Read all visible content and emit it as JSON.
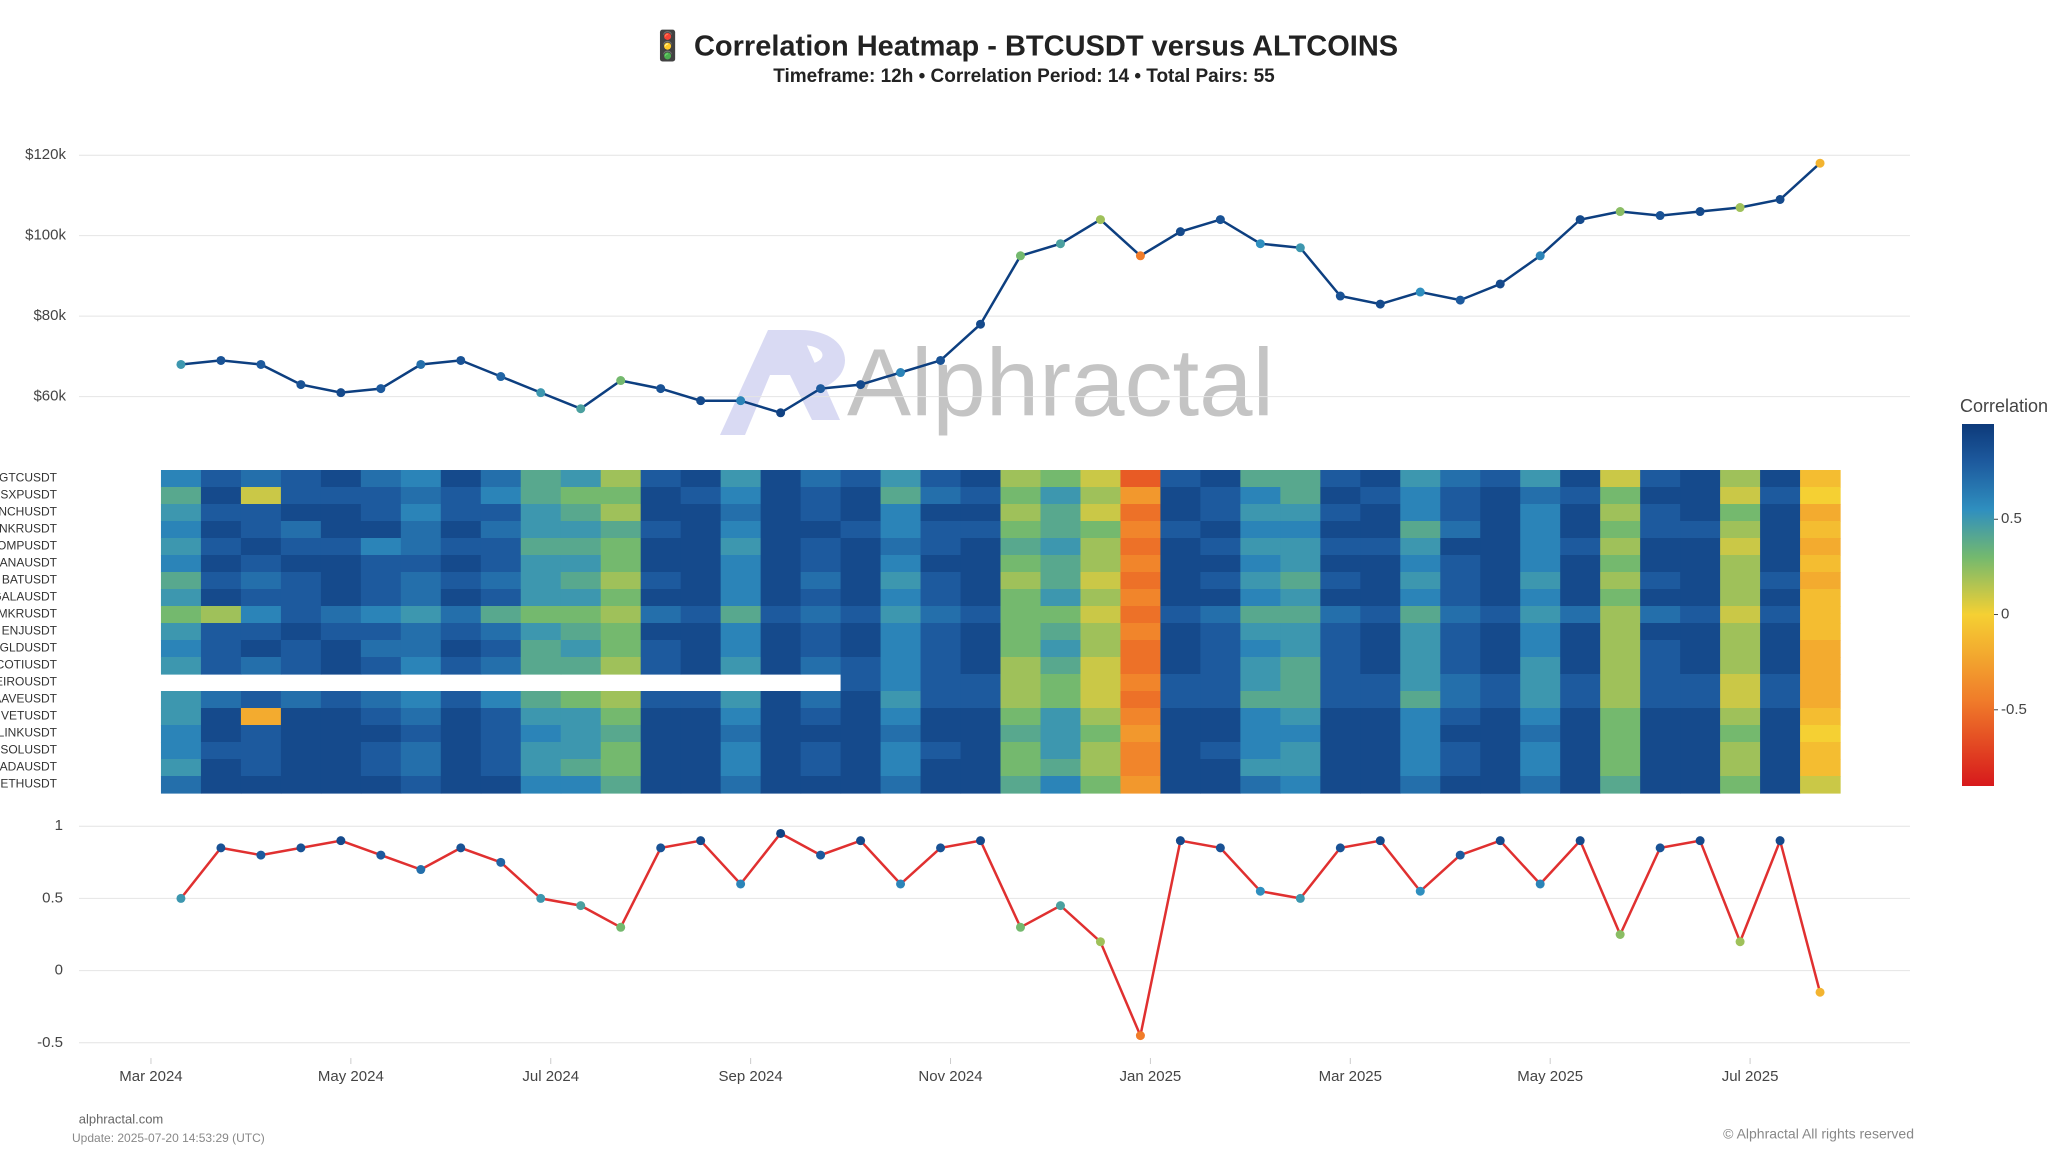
{
  "title": "🚦 Correlation Heatmap - BTCUSDT versus ALTCOINS",
  "subtitle": "Timeframe: 12h • Correlation Period: 14  • Total Pairs: 55",
  "watermark": "Alphractal",
  "footer": {
    "site": "alphractal.com",
    "update": "Update: 2025-07-20 14:53:29 (UTC)",
    "copyright": "© Alphractal All rights reserved"
  },
  "chart_data": [
    {
      "type": "line",
      "color": "#0d3f80",
      "x": [
        3.3,
        3.7,
        4.1,
        4.5,
        4.9,
        5.3,
        5.7,
        6.1,
        6.5,
        6.9,
        7.3,
        7.7,
        8.1,
        8.5,
        8.9,
        9.3,
        9.7,
        10.1,
        10.5,
        10.9,
        11.3,
        11.7,
        12.1,
        12.5,
        12.9,
        13.3,
        13.7,
        14.1,
        14.5,
        14.9,
        15.3,
        15.7,
        16.1,
        16.5,
        16.9,
        17.3,
        17.7,
        18.1,
        18.5,
        18.9,
        19.3,
        19.7
      ],
      "values": [
        68000,
        69000,
        68000,
        63000,
        61000,
        62000,
        68000,
        69000,
        65000,
        61000,
        57000,
        64000,
        62000,
        59000,
        59000,
        56000,
        62000,
        63000,
        66000,
        69000,
        78000,
        95000,
        98000,
        104000,
        95000,
        101000,
        104000,
        98000,
        97000,
        85000,
        83000,
        86000,
        84000,
        88000,
        95000,
        104000,
        106000,
        105000,
        106000,
        107000,
        109000,
        118000
      ],
      "xlim": [
        2.28,
        20.6
      ],
      "ylim": [
        46000,
        128000
      ],
      "yticks": [
        {
          "value": 60000,
          "label": "$60k"
        },
        {
          "value": 80000,
          "label": "$80k"
        },
        {
          "value": 100000,
          "label": "$100k"
        },
        {
          "value": 120000,
          "label": "$120k"
        }
      ],
      "grid": true
    },
    {
      "type": "heatmap",
      "rows": [
        "GTCUSDT",
        "SXPUSDT",
        "INCHUSDT",
        "ANKRUSDT",
        "COMPUSDT",
        "MANAUSDT",
        "BATUSDT",
        "GALAUSDT",
        "MKRUSDT",
        "ENJUSDT",
        "EGLDUSDT",
        "COTIUSDT",
        "NEIROUSDT",
        "AAVEUSDT",
        "VETUSDT",
        "LINKUSDT",
        "SOLUSDT",
        "ADAUSDT",
        "ETHUSDT"
      ],
      "x": [
        3.3,
        3.7,
        4.1,
        4.5,
        4.9,
        5.3,
        5.7,
        6.1,
        6.5,
        6.9,
        7.3,
        7.7,
        8.1,
        8.5,
        8.9,
        9.3,
        9.7,
        10.1,
        10.5,
        10.9,
        11.3,
        11.7,
        12.1,
        12.5,
        12.9,
        13.3,
        13.7,
        14.1,
        14.5,
        14.9,
        15.3,
        15.7,
        16.1,
        16.5,
        16.9,
        17.3,
        17.7,
        18.1,
        18.5,
        18.9,
        19.3,
        19.7
      ],
      "xlim": [
        2.28,
        20.6
      ],
      "z": [
        [
          0.6,
          0.8,
          0.7,
          0.8,
          0.9,
          0.7,
          0.6,
          0.9,
          0.7,
          0.4,
          0.5,
          0.2,
          0.8,
          0.9,
          0.5,
          0.9,
          0.7,
          0.8,
          0.5,
          0.8,
          0.9,
          0.2,
          0.3,
          0.1,
          -0.6,
          0.8,
          0.9,
          0.4,
          0.4,
          0.8,
          0.9,
          0.5,
          0.7,
          0.8,
          0.5,
          0.9,
          0.1,
          0.8,
          0.9,
          0.2,
          0.9,
          -0.1
        ],
        [
          0.4,
          0.9,
          0.1,
          0.8,
          0.8,
          0.8,
          0.7,
          0.8,
          0.6,
          0.4,
          0.3,
          0.3,
          0.9,
          0.8,
          0.6,
          0.9,
          0.8,
          0.9,
          0.4,
          0.7,
          0.8,
          0.3,
          0.5,
          0.2,
          -0.3,
          0.9,
          0.8,
          0.6,
          0.4,
          0.9,
          0.8,
          0.6,
          0.8,
          0.9,
          0.7,
          0.8,
          0.3,
          0.9,
          0.9,
          0.1,
          0.8,
          0.0
        ],
        [
          0.5,
          0.8,
          0.8,
          0.9,
          0.9,
          0.8,
          0.6,
          0.8,
          0.8,
          0.5,
          0.4,
          0.2,
          0.9,
          0.9,
          0.7,
          0.9,
          0.8,
          0.9,
          0.6,
          0.9,
          0.9,
          0.2,
          0.4,
          0.1,
          -0.5,
          0.9,
          0.8,
          0.5,
          0.5,
          0.8,
          0.9,
          0.6,
          0.8,
          0.9,
          0.6,
          0.9,
          0.2,
          0.8,
          0.9,
          0.3,
          0.9,
          -0.2
        ],
        [
          0.6,
          0.9,
          0.8,
          0.7,
          0.9,
          0.9,
          0.7,
          0.9,
          0.7,
          0.5,
          0.5,
          0.4,
          0.8,
          0.9,
          0.6,
          0.9,
          0.9,
          0.8,
          0.6,
          0.8,
          0.8,
          0.3,
          0.4,
          0.3,
          -0.4,
          0.8,
          0.9,
          0.6,
          0.6,
          0.9,
          0.9,
          0.4,
          0.7,
          0.9,
          0.6,
          0.9,
          0.3,
          0.8,
          0.8,
          0.2,
          0.9,
          -0.1
        ],
        [
          0.5,
          0.8,
          0.9,
          0.8,
          0.8,
          0.6,
          0.7,
          0.8,
          0.8,
          0.4,
          0.4,
          0.3,
          0.9,
          0.9,
          0.5,
          0.9,
          0.8,
          0.9,
          0.7,
          0.8,
          0.9,
          0.4,
          0.5,
          0.2,
          -0.5,
          0.9,
          0.8,
          0.5,
          0.5,
          0.8,
          0.8,
          0.5,
          0.9,
          0.9,
          0.6,
          0.8,
          0.2,
          0.9,
          0.9,
          0.1,
          0.9,
          -0.2
        ],
        [
          0.6,
          0.9,
          0.8,
          0.9,
          0.9,
          0.8,
          0.8,
          0.9,
          0.8,
          0.5,
          0.5,
          0.3,
          0.9,
          0.9,
          0.6,
          0.9,
          0.8,
          0.9,
          0.6,
          0.9,
          0.9,
          0.3,
          0.4,
          0.2,
          -0.4,
          0.9,
          0.9,
          0.6,
          0.5,
          0.9,
          0.9,
          0.6,
          0.8,
          0.9,
          0.6,
          0.9,
          0.3,
          0.9,
          0.9,
          0.2,
          0.9,
          -0.1
        ],
        [
          0.4,
          0.8,
          0.7,
          0.8,
          0.9,
          0.8,
          0.7,
          0.8,
          0.7,
          0.5,
          0.4,
          0.2,
          0.8,
          0.9,
          0.6,
          0.9,
          0.7,
          0.9,
          0.5,
          0.8,
          0.9,
          0.2,
          0.4,
          0.1,
          -0.5,
          0.9,
          0.8,
          0.5,
          0.4,
          0.8,
          0.9,
          0.5,
          0.8,
          0.9,
          0.5,
          0.9,
          0.2,
          0.8,
          0.9,
          0.2,
          0.8,
          -0.2
        ],
        [
          0.5,
          0.9,
          0.8,
          0.8,
          0.9,
          0.8,
          0.7,
          0.9,
          0.8,
          0.5,
          0.5,
          0.3,
          0.9,
          0.9,
          0.6,
          0.9,
          0.8,
          0.9,
          0.6,
          0.8,
          0.9,
          0.3,
          0.5,
          0.2,
          -0.4,
          0.9,
          0.9,
          0.6,
          0.5,
          0.9,
          0.9,
          0.6,
          0.8,
          0.9,
          0.6,
          0.9,
          0.3,
          0.9,
          0.9,
          0.2,
          0.9,
          -0.1
        ],
        [
          0.3,
          0.2,
          0.6,
          0.8,
          0.7,
          0.6,
          0.5,
          0.7,
          0.4,
          0.3,
          0.3,
          0.2,
          0.7,
          0.8,
          0.4,
          0.8,
          0.7,
          0.8,
          0.5,
          0.7,
          0.8,
          0.3,
          0.3,
          0.1,
          -0.5,
          0.8,
          0.7,
          0.4,
          0.4,
          0.7,
          0.8,
          0.4,
          0.7,
          0.8,
          0.5,
          0.7,
          0.2,
          0.7,
          0.8,
          0.1,
          0.8,
          -0.1
        ],
        [
          0.5,
          0.8,
          0.8,
          0.9,
          0.8,
          0.8,
          0.7,
          0.8,
          0.7,
          0.5,
          0.4,
          0.3,
          0.9,
          0.9,
          0.6,
          0.9,
          0.8,
          0.9,
          0.6,
          0.8,
          0.9,
          0.3,
          0.4,
          0.2,
          -0.4,
          0.9,
          0.8,
          0.5,
          0.5,
          0.8,
          0.9,
          0.5,
          0.8,
          0.9,
          0.6,
          0.9,
          0.2,
          0.9,
          0.9,
          0.2,
          0.9,
          -0.1
        ],
        [
          0.6,
          0.8,
          0.9,
          0.8,
          0.9,
          0.7,
          0.7,
          0.9,
          0.8,
          0.4,
          0.5,
          0.3,
          0.8,
          0.9,
          0.6,
          0.9,
          0.8,
          0.9,
          0.6,
          0.8,
          0.9,
          0.3,
          0.5,
          0.2,
          -0.5,
          0.9,
          0.8,
          0.6,
          0.5,
          0.8,
          0.9,
          0.5,
          0.8,
          0.9,
          0.6,
          0.9,
          0.2,
          0.8,
          0.9,
          0.2,
          0.9,
          -0.2
        ],
        [
          0.5,
          0.8,
          0.7,
          0.8,
          0.9,
          0.8,
          0.6,
          0.8,
          0.7,
          0.4,
          0.4,
          0.2,
          0.8,
          0.9,
          0.5,
          0.9,
          0.7,
          0.8,
          0.6,
          0.8,
          0.9,
          0.2,
          0.4,
          0.1,
          -0.5,
          0.9,
          0.8,
          0.5,
          0.4,
          0.8,
          0.9,
          0.5,
          0.8,
          0.9,
          0.5,
          0.9,
          0.2,
          0.8,
          0.9,
          0.2,
          0.9,
          -0.2
        ],
        [
          null,
          null,
          null,
          null,
          null,
          null,
          null,
          null,
          null,
          null,
          null,
          null,
          null,
          null,
          null,
          null,
          null,
          0.8,
          0.6,
          0.8,
          0.8,
          0.2,
          0.3,
          0.1,
          -0.4,
          0.8,
          0.8,
          0.5,
          0.4,
          0.8,
          0.8,
          0.5,
          0.7,
          0.8,
          0.5,
          0.8,
          0.2,
          0.8,
          0.8,
          0.1,
          0.8,
          -0.2
        ],
        [
          0.5,
          0.7,
          0.8,
          0.7,
          0.8,
          0.7,
          0.6,
          0.8,
          0.6,
          0.4,
          0.3,
          0.2,
          0.8,
          0.8,
          0.5,
          0.9,
          0.7,
          0.9,
          0.5,
          0.8,
          0.8,
          0.2,
          0.3,
          0.1,
          -0.5,
          0.8,
          0.8,
          0.4,
          0.4,
          0.8,
          0.8,
          0.4,
          0.7,
          0.8,
          0.5,
          0.8,
          0.2,
          0.8,
          0.8,
          0.1,
          0.8,
          -0.2
        ],
        [
          0.5,
          0.9,
          -0.2,
          0.9,
          0.9,
          0.8,
          0.7,
          0.9,
          0.8,
          0.5,
          0.5,
          0.3,
          0.9,
          0.9,
          0.6,
          0.9,
          0.8,
          0.9,
          0.6,
          0.9,
          0.9,
          0.3,
          0.5,
          0.2,
          -0.4,
          0.9,
          0.9,
          0.6,
          0.5,
          0.9,
          0.9,
          0.6,
          0.8,
          0.9,
          0.6,
          0.9,
          0.3,
          0.9,
          0.9,
          0.2,
          0.9,
          -0.1
        ],
        [
          0.6,
          0.9,
          0.8,
          0.9,
          0.9,
          0.9,
          0.8,
          0.9,
          0.8,
          0.6,
          0.5,
          0.4,
          0.9,
          0.9,
          0.7,
          0.9,
          0.9,
          0.9,
          0.7,
          0.9,
          0.9,
          0.4,
          0.5,
          0.3,
          -0.3,
          0.9,
          0.9,
          0.6,
          0.6,
          0.9,
          0.9,
          0.6,
          0.9,
          0.9,
          0.7,
          0.9,
          0.3,
          0.9,
          0.9,
          0.3,
          0.9,
          0.0
        ],
        [
          0.6,
          0.8,
          0.8,
          0.9,
          0.9,
          0.8,
          0.7,
          0.9,
          0.8,
          0.5,
          0.5,
          0.3,
          0.9,
          0.9,
          0.6,
          0.9,
          0.8,
          0.9,
          0.6,
          0.8,
          0.9,
          0.3,
          0.5,
          0.2,
          -0.4,
          0.9,
          0.8,
          0.6,
          0.5,
          0.9,
          0.9,
          0.6,
          0.8,
          0.9,
          0.6,
          0.9,
          0.3,
          0.9,
          0.9,
          0.2,
          0.9,
          -0.1
        ],
        [
          0.5,
          0.9,
          0.8,
          0.9,
          0.9,
          0.8,
          0.7,
          0.9,
          0.8,
          0.5,
          0.4,
          0.3,
          0.9,
          0.9,
          0.6,
          0.9,
          0.8,
          0.9,
          0.6,
          0.9,
          0.9,
          0.3,
          0.4,
          0.2,
          -0.4,
          0.9,
          0.9,
          0.5,
          0.5,
          0.9,
          0.9,
          0.6,
          0.8,
          0.9,
          0.6,
          0.9,
          0.3,
          0.9,
          0.9,
          0.2,
          0.9,
          -0.1
        ],
        [
          0.7,
          0.9,
          0.9,
          0.9,
          0.9,
          0.9,
          0.8,
          0.9,
          0.9,
          0.6,
          0.6,
          0.4,
          0.9,
          0.9,
          0.7,
          0.9,
          0.9,
          0.9,
          0.7,
          0.9,
          0.9,
          0.4,
          0.6,
          0.3,
          -0.3,
          0.9,
          0.9,
          0.7,
          0.6,
          0.9,
          0.9,
          0.7,
          0.9,
          0.9,
          0.7,
          0.9,
          0.4,
          0.9,
          0.9,
          0.3,
          0.9,
          0.1
        ]
      ],
      "colorbar_title": "Correlation",
      "zlim": [
        -0.9,
        1.0
      ],
      "zticks": [
        -0.5,
        0,
        0.5
      ],
      "colorscale": [
        [
          -0.9,
          "#d7191c"
        ],
        [
          -0.45,
          "#f07c2a"
        ],
        [
          0,
          "#f5d033"
        ],
        [
          0.3,
          "#74b96e"
        ],
        [
          0.55,
          "#2f8fbf"
        ],
        [
          0.8,
          "#1d5a9e"
        ],
        [
          1.0,
          "#0d3a7a"
        ]
      ]
    },
    {
      "type": "line",
      "color": "#e03030",
      "x": [
        3.3,
        3.7,
        4.1,
        4.5,
        4.9,
        5.3,
        5.7,
        6.1,
        6.5,
        6.9,
        7.3,
        7.7,
        8.1,
        8.5,
        8.9,
        9.3,
        9.7,
        10.1,
        10.5,
        10.9,
        11.3,
        11.7,
        12.1,
        12.5,
        12.9,
        13.3,
        13.7,
        14.1,
        14.5,
        14.9,
        15.3,
        15.7,
        16.1,
        16.5,
        16.9,
        17.3,
        17.7,
        18.1,
        18.5,
        18.9,
        19.3,
        19.7
      ],
      "values": [
        0.5,
        0.85,
        0.8,
        0.85,
        0.9,
        0.8,
        0.7,
        0.85,
        0.75,
        0.5,
        0.45,
        0.3,
        0.85,
        0.9,
        0.6,
        0.95,
        0.8,
        0.9,
        0.6,
        0.85,
        0.9,
        0.3,
        0.45,
        0.2,
        -0.45,
        0.9,
        0.85,
        0.55,
        0.5,
        0.85,
        0.9,
        0.55,
        0.8,
        0.9,
        0.6,
        0.9,
        0.25,
        0.85,
        0.9,
        0.2,
        0.9,
        -0.15
      ],
      "xlim": [
        2.28,
        20.6
      ],
      "ylim": [
        -0.55,
        1.05
      ],
      "yticks": [
        -0.5,
        0,
        0.5,
        1
      ],
      "xticks": [
        {
          "value": 3,
          "label": "Mar 2024"
        },
        {
          "value": 5,
          "label": "May 2024"
        },
        {
          "value": 7,
          "label": "Jul 2024"
        },
        {
          "value": 9,
          "label": "Sep 2024"
        },
        {
          "value": 11,
          "label": "Nov 2024"
        },
        {
          "value": 13,
          "label": "Jan 2025"
        },
        {
          "value": 15,
          "label": "Mar 2025"
        },
        {
          "value": 17,
          "label": "May 2025"
        },
        {
          "value": 19,
          "label": "Jul 2025"
        }
      ],
      "grid": true
    }
  ]
}
